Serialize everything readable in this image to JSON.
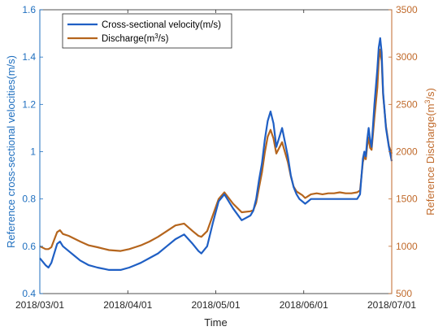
{
  "chart_data": {
    "type": "line",
    "xlabel": "Time",
    "ylabel_left": "Reference cross-sectional velocities(m/s)",
    "ylabel_right_parts": [
      "Reference Discharge(m",
      "3",
      "/s)"
    ],
    "x_ticks": [
      "2018/03/01",
      "2018/04/01",
      "2018/05/01",
      "2018/06/01",
      "2018/07/01"
    ],
    "x_range": [
      0,
      122
    ],
    "y_left": {
      "lim": [
        0.4,
        1.6
      ],
      "ticks": [
        "0.4",
        "0.6",
        "0.8",
        "1",
        "1.2",
        "1.4",
        "1.6"
      ]
    },
    "y_right": {
      "lim": [
        500,
        3500
      ],
      "ticks": [
        "500",
        "1000",
        "1500",
        "2000",
        "2500",
        "3000",
        "3500"
      ]
    },
    "grid": false,
    "legend_placement": "top-left",
    "legend": {
      "velocity_label": "Cross-sectional velocity(m/s)",
      "discharge_parts": [
        "Discharge(m",
        "3",
        "/s)"
      ]
    },
    "colors": {
      "velocity": "#1f5fc4",
      "discharge": "#b5651d",
      "left_axis": "#1f6fbf",
      "right_axis": "#c06a2b"
    },
    "series": [
      {
        "name": "Cross-sectional velocity(m/s)",
        "axis": "left",
        "x": [
          0,
          2,
          3,
          4,
          6,
          7,
          8,
          10,
          12,
          14,
          17,
          20,
          24,
          28,
          31,
          33,
          35,
          38,
          41,
          44,
          47,
          50,
          53,
          55,
          56,
          58,
          60,
          62,
          64,
          67,
          70,
          73,
          74,
          75,
          76,
          77,
          78,
          79,
          80,
          81,
          82,
          84,
          86,
          87,
          88,
          89,
          90,
          91,
          92,
          93,
          94,
          96,
          98,
          100,
          102,
          104,
          106,
          108,
          110,
          111,
          112,
          112.5,
          113,
          113.5,
          114,
          114.5,
          115,
          116,
          117,
          117.5,
          118,
          118.5,
          119,
          120,
          121,
          122
        ],
        "values": [
          0.55,
          0.52,
          0.51,
          0.53,
          0.61,
          0.62,
          0.6,
          0.58,
          0.56,
          0.54,
          0.52,
          0.51,
          0.5,
          0.5,
          0.51,
          0.52,
          0.53,
          0.55,
          0.57,
          0.6,
          0.63,
          0.65,
          0.61,
          0.58,
          0.57,
          0.6,
          0.7,
          0.79,
          0.82,
          0.76,
          0.71,
          0.73,
          0.75,
          0.8,
          0.88,
          0.95,
          1.05,
          1.13,
          1.17,
          1.12,
          1.02,
          1.1,
          0.98,
          0.9,
          0.85,
          0.82,
          0.8,
          0.79,
          0.78,
          0.79,
          0.8,
          0.8,
          0.8,
          0.8,
          0.8,
          0.8,
          0.8,
          0.8,
          0.8,
          0.82,
          0.97,
          1.0,
          0.98,
          1.05,
          1.1,
          1.05,
          1.02,
          1.2,
          1.35,
          1.44,
          1.48,
          1.42,
          1.25,
          1.1,
          1.02,
          0.96
        ]
      },
      {
        "name": "Discharge(m3/s)",
        "axis": "right",
        "x": [
          0,
          2,
          3,
          4,
          6,
          7,
          8,
          10,
          12,
          14,
          17,
          20,
          24,
          28,
          31,
          33,
          35,
          38,
          41,
          44,
          47,
          50,
          53,
          55,
          56,
          58,
          60,
          62,
          64,
          67,
          70,
          73,
          74,
          75,
          76,
          77,
          78,
          79,
          80,
          81,
          82,
          84,
          86,
          87,
          88,
          89,
          90,
          91,
          92,
          93,
          94,
          96,
          98,
          100,
          102,
          104,
          106,
          108,
          110,
          111,
          112,
          112.5,
          113,
          113.5,
          114,
          114.5,
          115,
          116,
          117,
          117.5,
          118,
          118.5,
          119,
          120,
          121,
          122
        ],
        "values": [
          1000,
          970,
          970,
          990,
          1150,
          1170,
          1130,
          1110,
          1080,
          1050,
          1010,
          990,
          960,
          950,
          970,
          990,
          1010,
          1050,
          1100,
          1160,
          1220,
          1240,
          1160,
          1110,
          1100,
          1160,
          1330,
          1500,
          1570,
          1450,
          1360,
          1370,
          1380,
          1460,
          1620,
          1780,
          1990,
          2160,
          2230,
          2140,
          1980,
          2100,
          1890,
          1740,
          1630,
          1580,
          1560,
          1540,
          1510,
          1530,
          1550,
          1560,
          1550,
          1560,
          1560,
          1570,
          1560,
          1560,
          1570,
          1590,
          1890,
          1950,
          1920,
          2060,
          2150,
          2040,
          2020,
          2360,
          2680,
          2960,
          3080,
          2960,
          2600,
          2270,
          2060,
          1980
        ]
      }
    ]
  }
}
